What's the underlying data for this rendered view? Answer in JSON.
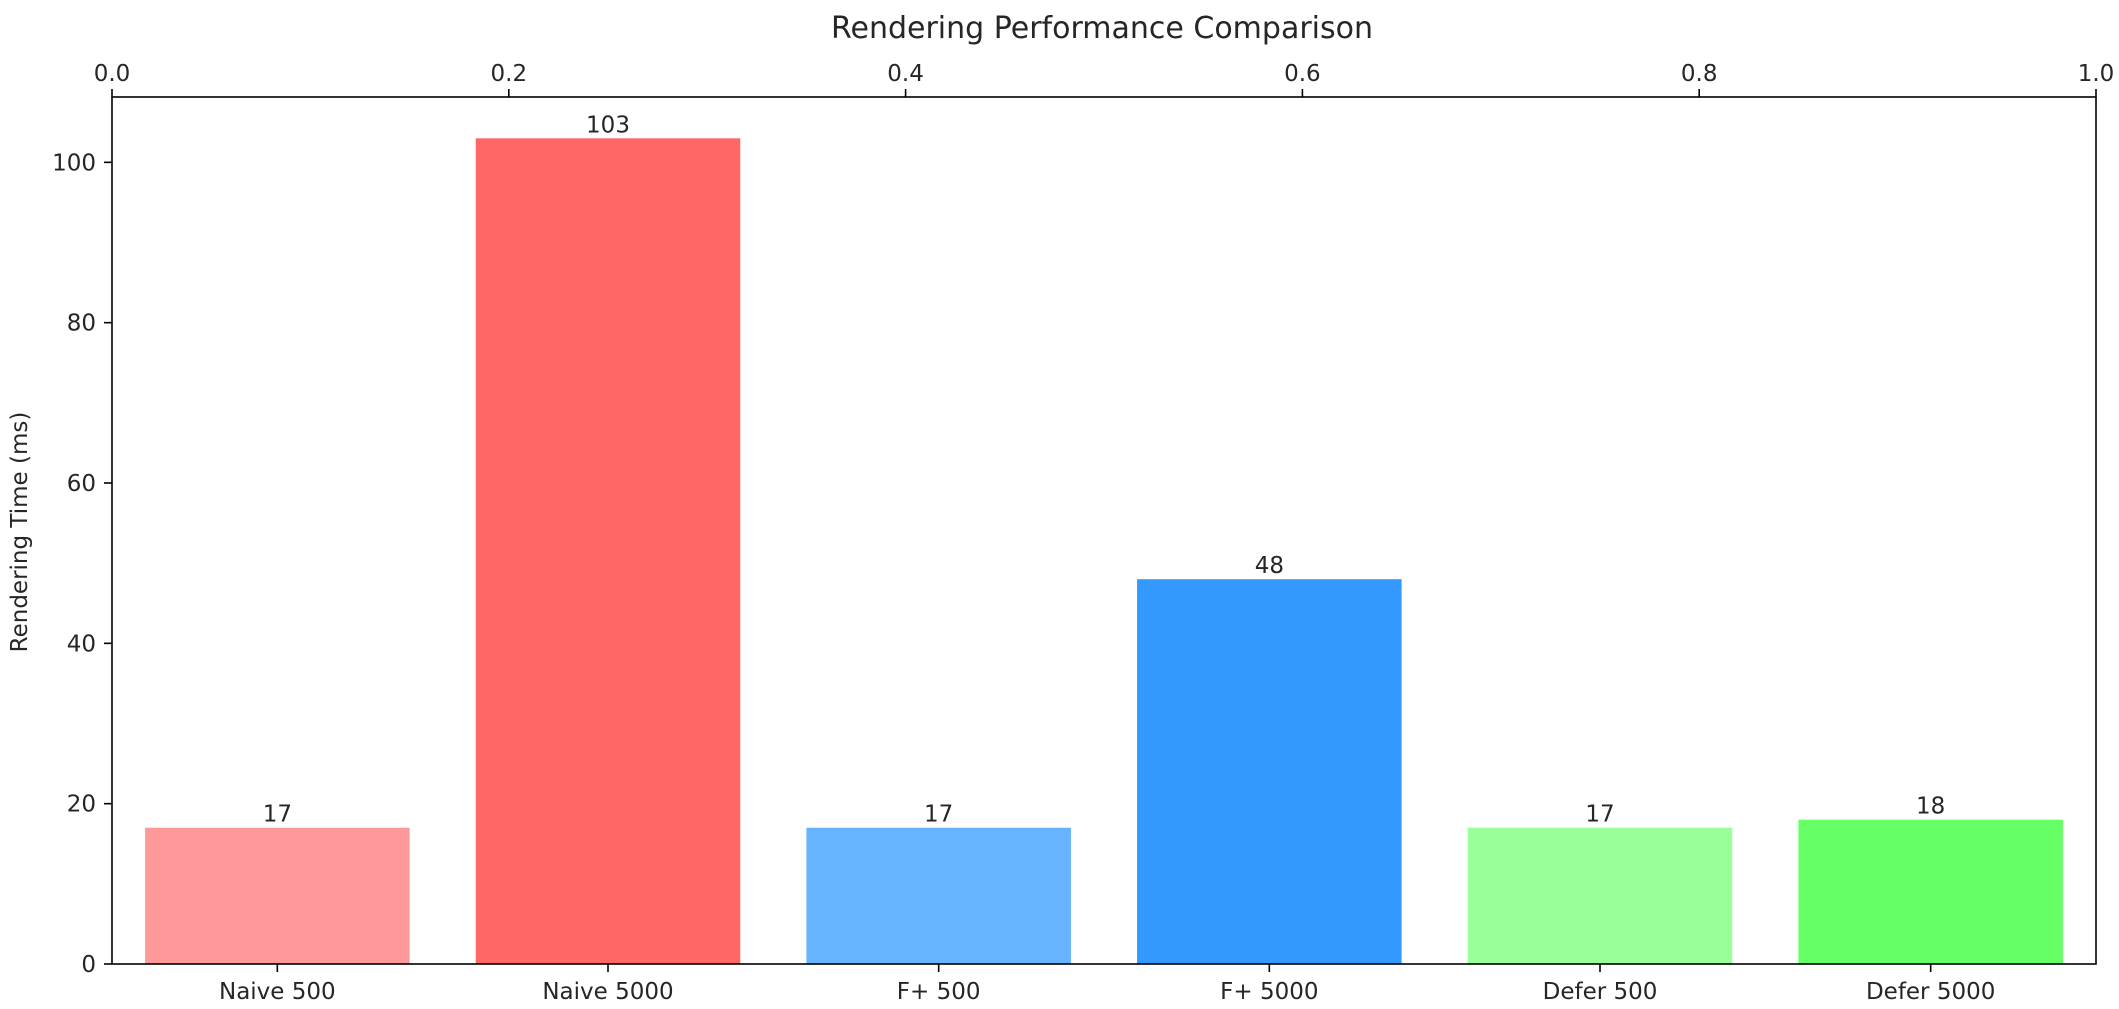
{
  "chart_data": {
    "type": "bar",
    "title": "Rendering Performance Comparison",
    "xlabel": "",
    "ylabel": "Rendering Time (ms)",
    "categories": [
      "Naive 500",
      "Naive 5000",
      "F+ 500",
      "F+ 5000",
      "Defer 500",
      "Defer 5000"
    ],
    "values": [
      17,
      103,
      17,
      48,
      17,
      18
    ],
    "data_labels": [
      "17",
      "103",
      "17",
      "48",
      "17",
      "18"
    ],
    "colors": [
      "#ff9999",
      "#ff6666",
      "#66b3ff",
      "#3399ff",
      "#99ff99",
      "#66ff66"
    ],
    "ylim": [
      0,
      108.15
    ],
    "yticks": [
      0,
      20,
      40,
      60,
      80,
      100
    ],
    "ytick_labels": [
      "0",
      "20",
      "40",
      "60",
      "80",
      "100"
    ],
    "top_axis": {
      "range": [
        0,
        1
      ],
      "ticks": [
        0,
        0.2,
        0.4,
        0.6,
        0.8,
        1.0
      ],
      "tick_labels": [
        "0.0",
        "0.2",
        "0.4",
        "0.6",
        "0.8",
        "1.0"
      ]
    },
    "grid": false,
    "legend": "none"
  }
}
